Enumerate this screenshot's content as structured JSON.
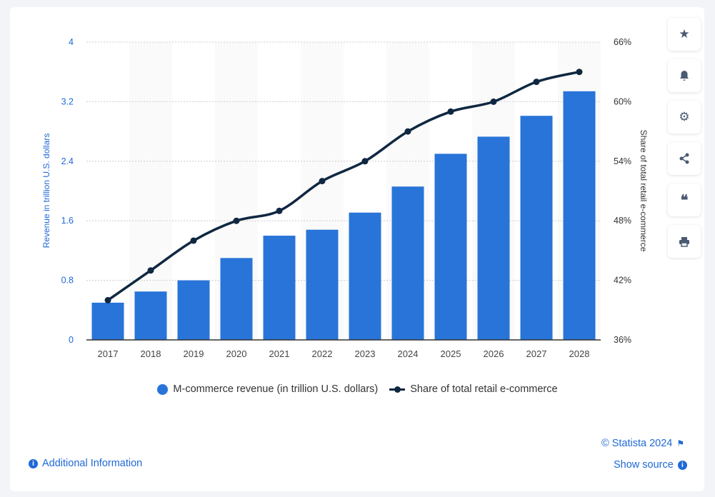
{
  "chart_data": {
    "type": "bar+line",
    "categories": [
      "2017",
      "2018",
      "2019",
      "2020",
      "2021",
      "2022",
      "2023",
      "2024",
      "2025",
      "2026",
      "2027",
      "2028"
    ],
    "series": [
      {
        "name": "M-commerce revenue (in trillion U.S. dollars)",
        "type": "bar",
        "axis": "left",
        "color": "#2874d9",
        "values": [
          0.5,
          0.65,
          0.8,
          1.1,
          1.4,
          1.48,
          1.71,
          2.06,
          2.5,
          2.73,
          3.01,
          3.34
        ]
      },
      {
        "name": "Share of total retail e-commerce",
        "type": "line",
        "axis": "right",
        "color": "#0f2741",
        "values": [
          40.0,
          43.0,
          46.0,
          48.0,
          49.0,
          52.0,
          54.0,
          57.0,
          59.0,
          60.0,
          62.0,
          63.0
        ]
      }
    ],
    "ylabel_left": "Revenue in trillion U.S. dollars",
    "ylabel_right": "Share of total retail e-commerce",
    "ylim_left": [
      0,
      4
    ],
    "yticks_left": [
      "0",
      "0.8",
      "1.6",
      "2.4",
      "3.2",
      "4"
    ],
    "ylim_right": [
      36,
      66
    ],
    "yticks_right": [
      "36%",
      "42%",
      "48%",
      "54%",
      "60%",
      "66%"
    ],
    "grid": true,
    "legend": "bottom"
  },
  "legend": {
    "bar": "M-commerce revenue (in trillion U.S. dollars)",
    "line": "Share of total retail e-commerce"
  },
  "footer": {
    "copyright": "© Statista 2024",
    "show_source": "Show source",
    "additional_info": "Additional Information"
  },
  "sidebar": {
    "icons": [
      "star-icon",
      "bell-icon",
      "gear-icon",
      "share-icon",
      "quote-icon",
      "print-icon"
    ]
  }
}
